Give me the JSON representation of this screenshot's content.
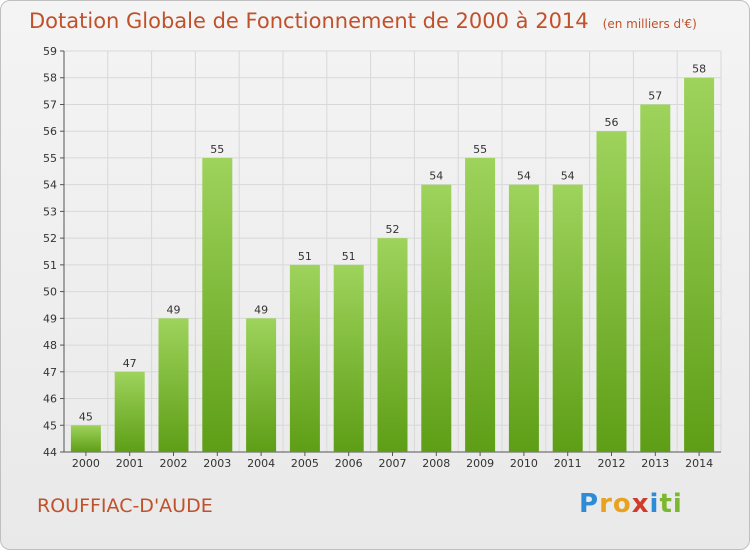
{
  "title": "Dotation Globale de Fonctionnement de 2000 à 2014",
  "unit": "(en milliers d'€)",
  "commune": "ROUFFIAC-D'AUDE",
  "brand": {
    "letters": [
      "P",
      "r",
      "o",
      "x",
      "i",
      "t",
      "i"
    ],
    "colors": [
      "#2e8bd6",
      "#e8a21f",
      "#e8a21f",
      "#d23a2a",
      "#2e8bd6",
      "#7cb82f",
      "#7cb82f"
    ]
  },
  "colors": {
    "bar_top": "#9ed35c",
    "bar_bottom": "#5e9e16",
    "title": "#c0512b",
    "grid": "#d8d8d8",
    "text": "#333333"
  },
  "chart_data": {
    "type": "bar",
    "title": "Dotation Globale de Fonctionnement de 2000 à 2014",
    "subtitle": "(en milliers d'€)",
    "categories": [
      "2000",
      "2001",
      "2002",
      "2003",
      "2004",
      "2005",
      "2006",
      "2007",
      "2008",
      "2009",
      "2010",
      "2011",
      "2012",
      "2013",
      "2014"
    ],
    "values": [
      45,
      47,
      49,
      55,
      49,
      51,
      51,
      52,
      54,
      55,
      54,
      54,
      56,
      57,
      58
    ],
    "ylim": [
      44,
      59
    ],
    "yticks": [
      44,
      45,
      46,
      47,
      48,
      49,
      50,
      51,
      52,
      53,
      54,
      55,
      56,
      57,
      58,
      59
    ],
    "grid": true,
    "legend": "none"
  }
}
